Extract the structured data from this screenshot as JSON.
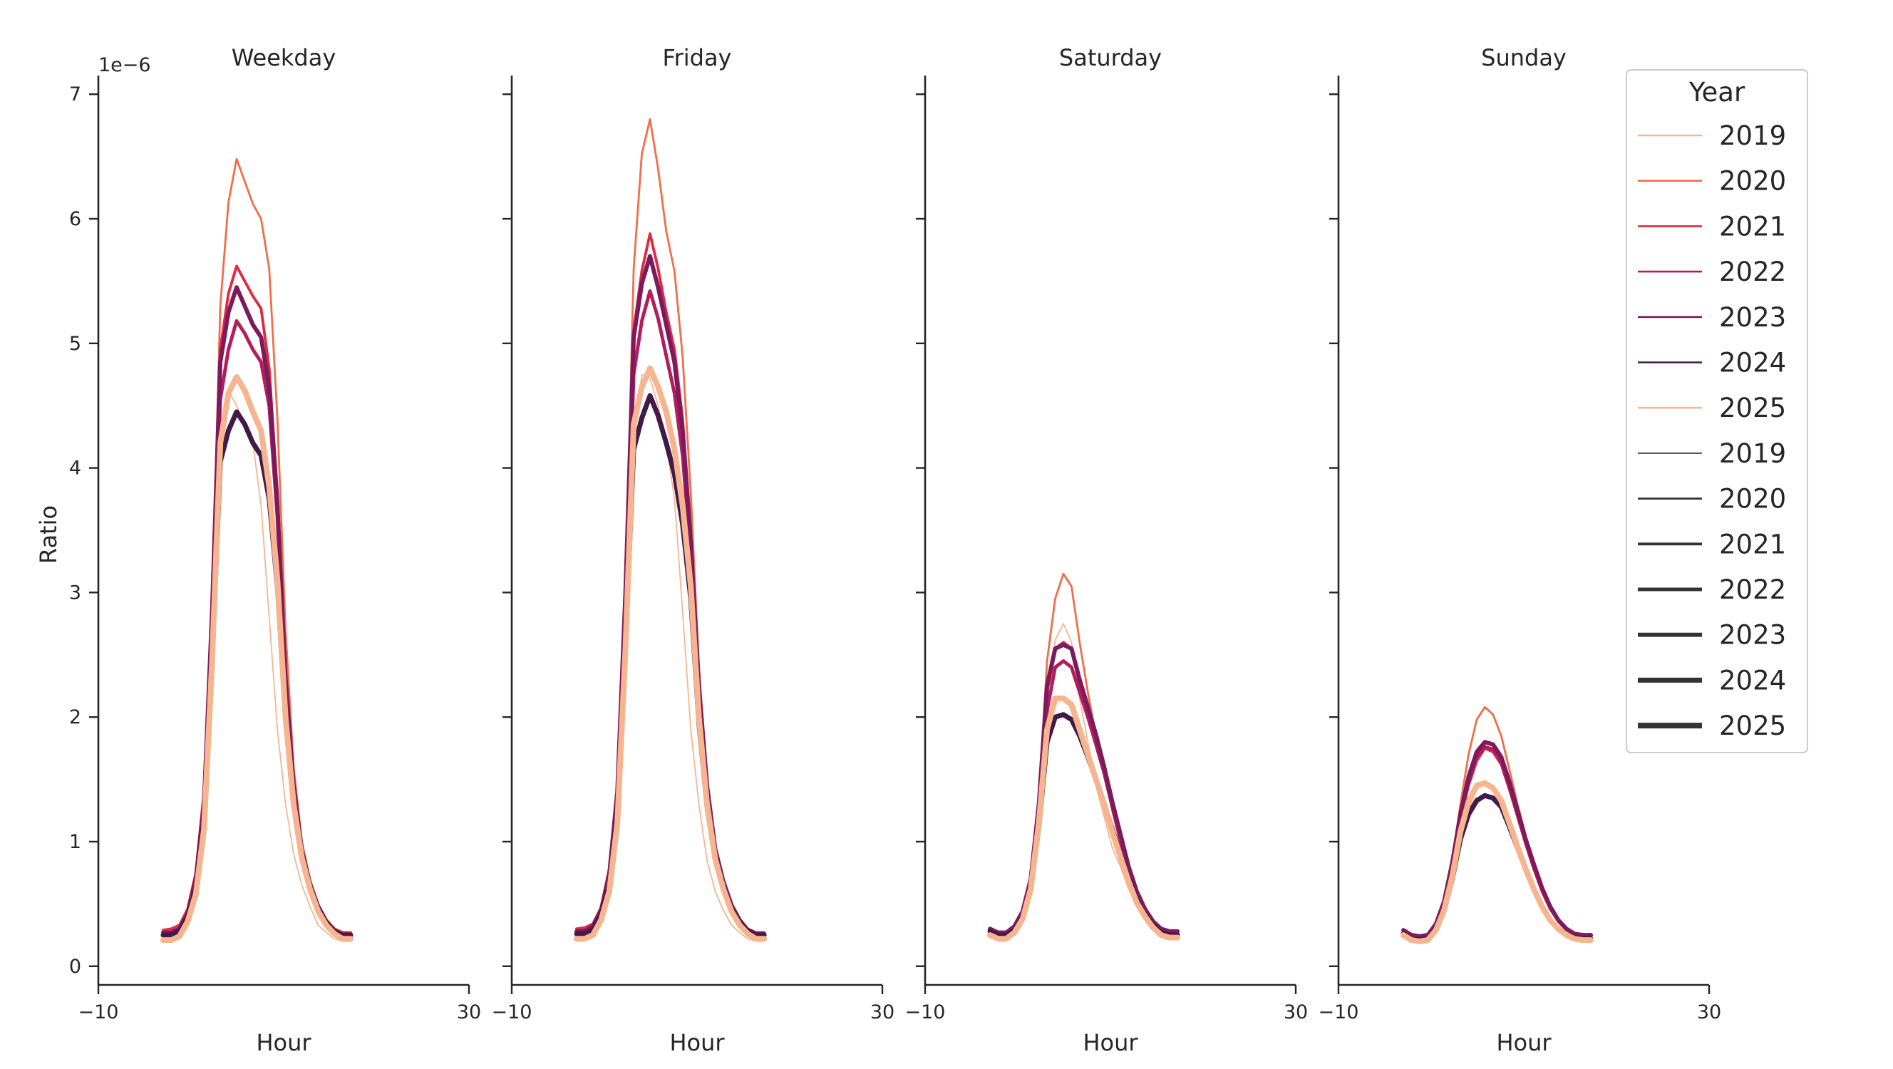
{
  "chart_data": {
    "type": "line",
    "scale_label": "1e−6",
    "ylabel": "Ratio",
    "xlabel": "Hour",
    "xlim": [
      -10,
      30
    ],
    "ylim": [
      -0.15,
      7.15
    ],
    "xticks": [
      "−10",
      "30"
    ],
    "yticks": [
      "0",
      "1",
      "2",
      "3",
      "4",
      "5",
      "6",
      "7"
    ],
    "hours": [
      0,
      1,
      2,
      3,
      4,
      5,
      6,
      7,
      8,
      9,
      10,
      11,
      12,
      13,
      14,
      15,
      16,
      17,
      18,
      19,
      20,
      21,
      22,
      23
    ],
    "legend": {
      "title": "Year",
      "color_entries": [
        {
          "label": "2019",
          "color": "#f6b48f"
        },
        {
          "label": "2020",
          "color": "#f06e49"
        },
        {
          "label": "2021",
          "color": "#dd2b41"
        },
        {
          "label": "2022",
          "color": "#b31d5c"
        },
        {
          "label": "2023",
          "color": "#7d1a5e"
        },
        {
          "label": "2024",
          "color": "#421a47"
        },
        {
          "label": "2025",
          "color": "#f6b48f"
        }
      ],
      "size_entries": [
        {
          "label": "2019",
          "width": 1
        },
        {
          "label": "2020",
          "width": 1.6
        },
        {
          "label": "2021",
          "width": 2.2
        },
        {
          "label": "2022",
          "width": 2.8
        },
        {
          "label": "2023",
          "width": 3.4
        },
        {
          "label": "2024",
          "width": 4.0
        },
        {
          "label": "2025",
          "width": 4.6
        }
      ]
    },
    "panels": [
      {
        "title": "Weekday",
        "series": [
          {
            "year": "2019",
            "color": "#f6b48f",
            "width": 1.0,
            "values": [
              0.22,
              0.23,
              0.27,
              0.38,
              0.62,
              1.12,
              2.45,
              4.0,
              4.62,
              4.5,
              4.35,
              4.2,
              3.7,
              2.8,
              1.9,
              1.3,
              0.9,
              0.65,
              0.48,
              0.33,
              0.27,
              0.22,
              0.2,
              0.2
            ]
          },
          {
            "year": "2020",
            "color": "#f06e49",
            "width": 1.6,
            "values": [
              0.26,
              0.26,
              0.3,
              0.43,
              0.7,
              1.3,
              2.9,
              5.3,
              6.13,
              6.48,
              6.3,
              6.12,
              6.0,
              5.6,
              4.4,
              2.7,
              1.6,
              1.0,
              0.7,
              0.5,
              0.38,
              0.3,
              0.26,
              0.26
            ]
          },
          {
            "year": "2021",
            "color": "#dd2b41",
            "width": 2.2,
            "values": [
              0.29,
              0.3,
              0.33,
              0.46,
              0.75,
              1.4,
              2.95,
              4.95,
              5.4,
              5.62,
              5.5,
              5.38,
              5.28,
              4.8,
              3.8,
              2.4,
              1.5,
              0.95,
              0.68,
              0.48,
              0.37,
              0.3,
              0.27,
              0.27
            ]
          },
          {
            "year": "2022",
            "color": "#b31d5c",
            "width": 2.8,
            "values": [
              0.27,
              0.27,
              0.3,
              0.42,
              0.68,
              1.25,
              2.7,
              4.55,
              4.95,
              5.18,
              5.08,
              4.95,
              4.85,
              4.5,
              3.6,
              2.3,
              1.45,
              0.92,
              0.66,
              0.47,
              0.35,
              0.28,
              0.25,
              0.25
            ]
          },
          {
            "year": "2023",
            "color": "#7d1a5e",
            "width": 3.4,
            "values": [
              0.27,
              0.27,
              0.3,
              0.42,
              0.7,
              1.3,
              2.85,
              4.85,
              5.25,
              5.45,
              5.3,
              5.15,
              5.05,
              4.65,
              3.7,
              2.3,
              1.45,
              0.93,
              0.66,
              0.48,
              0.36,
              0.28,
              0.25,
              0.25
            ]
          },
          {
            "year": "2024",
            "color": "#421a47",
            "width": 4.0,
            "values": [
              0.25,
              0.25,
              0.28,
              0.4,
              0.62,
              1.15,
              2.45,
              4.05,
              4.3,
              4.45,
              4.35,
              4.2,
              4.1,
              3.75,
              3.05,
              2.0,
              1.3,
              0.87,
              0.64,
              0.46,
              0.35,
              0.28,
              0.25,
              0.25
            ]
          },
          {
            "year": "2025",
            "color": "#f6b48f",
            "width": 4.6,
            "values": [
              0.21,
              0.21,
              0.24,
              0.36,
              0.58,
              1.1,
              2.45,
              4.2,
              4.6,
              4.73,
              4.62,
              4.45,
              4.3,
              3.85,
              3.1,
              2.0,
              1.3,
              0.87,
              0.62,
              0.44,
              0.33,
              0.26,
              0.22,
              0.22
            ]
          }
        ]
      },
      {
        "title": "Friday",
        "series": [
          {
            "year": "2019",
            "color": "#f6b48f",
            "width": 1.0,
            "values": [
              0.24,
              0.25,
              0.28,
              0.39,
              0.64,
              1.2,
              2.6,
              4.2,
              4.75,
              4.72,
              4.5,
              4.2,
              3.75,
              2.85,
              1.9,
              1.3,
              0.85,
              0.6,
              0.45,
              0.33,
              0.27,
              0.22,
              0.2,
              0.2
            ]
          },
          {
            "year": "2020",
            "color": "#f06e49",
            "width": 1.6,
            "values": [
              0.27,
              0.27,
              0.31,
              0.44,
              0.72,
              1.35,
              3.0,
              5.6,
              6.52,
              6.8,
              6.4,
              5.9,
              5.58,
              4.9,
              3.8,
              2.4,
              1.5,
              0.95,
              0.68,
              0.48,
              0.38,
              0.3,
              0.27,
              0.27
            ]
          },
          {
            "year": "2021",
            "color": "#dd2b41",
            "width": 2.2,
            "values": [
              0.3,
              0.31,
              0.34,
              0.47,
              0.78,
              1.45,
              3.05,
              5.1,
              5.58,
              5.88,
              5.6,
              5.25,
              4.95,
              4.4,
              3.5,
              2.3,
              1.45,
              0.93,
              0.66,
              0.48,
              0.37,
              0.3,
              0.27,
              0.27
            ]
          },
          {
            "year": "2022",
            "color": "#b31d5c",
            "width": 2.8,
            "values": [
              0.28,
              0.28,
              0.31,
              0.43,
              0.7,
              1.3,
              2.8,
              4.75,
              5.18,
              5.42,
              5.2,
              4.9,
              4.6,
              4.1,
              3.3,
              2.2,
              1.4,
              0.92,
              0.66,
              0.47,
              0.36,
              0.29,
              0.26,
              0.26
            ]
          },
          {
            "year": "2023",
            "color": "#7d1a5e",
            "width": 3.4,
            "values": [
              0.28,
              0.28,
              0.32,
              0.45,
              0.73,
              1.4,
              3.0,
              5.05,
              5.48,
              5.7,
              5.45,
              5.15,
              4.85,
              4.3,
              3.4,
              2.25,
              1.45,
              0.94,
              0.68,
              0.49,
              0.37,
              0.29,
              0.26,
              0.26
            ]
          },
          {
            "year": "2024",
            "color": "#421a47",
            "width": 4.0,
            "values": [
              0.26,
              0.26,
              0.29,
              0.41,
              0.65,
              1.2,
              2.6,
              4.15,
              4.4,
              4.58,
              4.42,
              4.2,
              3.95,
              3.55,
              2.95,
              1.95,
              1.28,
              0.86,
              0.63,
              0.46,
              0.35,
              0.28,
              0.25,
              0.25
            ]
          },
          {
            "year": "2025",
            "color": "#f6b48f",
            "width": 4.6,
            "values": [
              0.22,
              0.22,
              0.25,
              0.37,
              0.6,
              1.15,
              2.55,
              4.35,
              4.65,
              4.8,
              4.65,
              4.45,
              4.15,
              3.7,
              3.05,
              2.0,
              1.3,
              0.86,
              0.62,
              0.44,
              0.33,
              0.26,
              0.22,
              0.22
            ]
          }
        ]
      },
      {
        "title": "Saturday",
        "series": [
          {
            "year": "2019",
            "color": "#f6b48f",
            "width": 1.0,
            "values": [
              0.26,
              0.23,
              0.23,
              0.27,
              0.38,
              0.6,
              1.1,
              1.95,
              2.62,
              2.75,
              2.6,
              2.15,
              1.8,
              1.45,
              1.2,
              0.95,
              0.8,
              0.62,
              0.48,
              0.38,
              0.3,
              0.26,
              0.24,
              0.24
            ]
          },
          {
            "year": "2020",
            "color": "#f06e49",
            "width": 1.6,
            "values": [
              0.3,
              0.27,
              0.27,
              0.32,
              0.45,
              0.72,
              1.35,
              2.45,
              2.95,
              3.15,
              3.05,
              2.6,
              2.2,
              1.85,
              1.55,
              1.25,
              0.98,
              0.75,
              0.56,
              0.43,
              0.34,
              0.28,
              0.26,
              0.26
            ]
          },
          {
            "year": "2021",
            "color": "#dd2b41",
            "width": 2.2,
            "values": [
              0.3,
              0.27,
              0.27,
              0.32,
              0.44,
              0.7,
              1.3,
              2.2,
              2.55,
              2.6,
              2.55,
              2.3,
              2.05,
              1.8,
              1.55,
              1.28,
              1.02,
              0.78,
              0.58,
              0.45,
              0.35,
              0.29,
              0.27,
              0.27
            ]
          },
          {
            "year": "2022",
            "color": "#b31d5c",
            "width": 2.8,
            "values": [
              0.28,
              0.25,
              0.25,
              0.3,
              0.42,
              0.66,
              1.22,
              2.05,
              2.4,
              2.45,
              2.4,
              2.2,
              2.0,
              1.78,
              1.55,
              1.28,
              1.02,
              0.78,
              0.58,
              0.45,
              0.35,
              0.29,
              0.27,
              0.27
            ]
          },
          {
            "year": "2023",
            "color": "#7d1a5e",
            "width": 3.4,
            "values": [
              0.3,
              0.27,
              0.27,
              0.32,
              0.44,
              0.7,
              1.3,
              2.25,
              2.55,
              2.58,
              2.55,
              2.3,
              2.08,
              1.86,
              1.6,
              1.32,
              1.06,
              0.8,
              0.6,
              0.46,
              0.36,
              0.3,
              0.28,
              0.28
            ]
          },
          {
            "year": "2024",
            "color": "#421a47",
            "width": 4.0,
            "values": [
              0.28,
              0.25,
              0.25,
              0.29,
              0.4,
              0.62,
              1.12,
              1.8,
              2.0,
              2.02,
              1.98,
              1.85,
              1.68,
              1.5,
              1.3,
              1.1,
              0.9,
              0.7,
              0.53,
              0.41,
              0.33,
              0.27,
              0.25,
              0.25
            ]
          },
          {
            "year": "2025",
            "color": "#f6b48f",
            "width": 4.6,
            "values": [
              0.25,
              0.22,
              0.22,
              0.27,
              0.38,
              0.62,
              1.15,
              1.9,
              2.15,
              2.15,
              2.1,
              1.9,
              1.7,
              1.5,
              1.3,
              1.08,
              0.88,
              0.68,
              0.51,
              0.4,
              0.31,
              0.25,
              0.23,
              0.23
            ]
          }
        ]
      },
      {
        "title": "Sunday",
        "series": [
          {
            "year": "2019",
            "color": "#f6b48f",
            "width": 1.0,
            "values": [
              0.26,
              0.22,
              0.21,
              0.22,
              0.3,
              0.45,
              0.7,
              1.0,
              1.25,
              1.42,
              1.47,
              1.45,
              1.35,
              1.15,
              0.95,
              0.78,
              0.62,
              0.48,
              0.38,
              0.3,
              0.25,
              0.23,
              0.22,
              0.22
            ]
          },
          {
            "year": "2020",
            "color": "#f06e49",
            "width": 1.6,
            "values": [
              0.29,
              0.25,
              0.24,
              0.25,
              0.34,
              0.52,
              0.85,
              1.3,
              1.7,
              1.98,
              2.08,
              2.02,
              1.85,
              1.58,
              1.3,
              1.05,
              0.82,
              0.62,
              0.47,
              0.36,
              0.29,
              0.26,
              0.25,
              0.25
            ]
          },
          {
            "year": "2021",
            "color": "#dd2b41",
            "width": 2.2,
            "values": [
              0.29,
              0.25,
              0.24,
              0.25,
              0.34,
              0.52,
              0.82,
              1.18,
              1.45,
              1.65,
              1.75,
              1.72,
              1.62,
              1.42,
              1.2,
              0.98,
              0.78,
              0.6,
              0.46,
              0.36,
              0.29,
              0.26,
              0.25,
              0.25
            ]
          },
          {
            "year": "2022",
            "color": "#b31d5c",
            "width": 2.8,
            "values": [
              0.29,
              0.25,
              0.24,
              0.25,
              0.34,
              0.52,
              0.82,
              1.2,
              1.48,
              1.68,
              1.76,
              1.74,
              1.64,
              1.44,
              1.22,
              1.0,
              0.8,
              0.62,
              0.48,
              0.37,
              0.3,
              0.26,
              0.25,
              0.25
            ]
          },
          {
            "year": "2023",
            "color": "#7d1a5e",
            "width": 3.4,
            "values": [
              0.29,
              0.25,
              0.24,
              0.25,
              0.34,
              0.52,
              0.83,
              1.22,
              1.52,
              1.72,
              1.8,
              1.78,
              1.68,
              1.48,
              1.25,
              1.02,
              0.82,
              0.63,
              0.48,
              0.37,
              0.3,
              0.26,
              0.25,
              0.25
            ]
          },
          {
            "year": "2024",
            "color": "#421a47",
            "width": 4.0,
            "values": [
              0.26,
              0.22,
              0.21,
              0.22,
              0.3,
              0.45,
              0.7,
              1.02,
              1.22,
              1.33,
              1.37,
              1.35,
              1.28,
              1.12,
              0.95,
              0.78,
              0.62,
              0.48,
              0.37,
              0.3,
              0.25,
              0.23,
              0.22,
              0.22
            ]
          },
          {
            "year": "2025",
            "color": "#f6b48f",
            "width": 4.6,
            "values": [
              0.25,
              0.21,
              0.2,
              0.21,
              0.29,
              0.45,
              0.72,
              1.08,
              1.32,
              1.45,
              1.47,
              1.43,
              1.33,
              1.15,
              0.96,
              0.78,
              0.62,
              0.48,
              0.37,
              0.3,
              0.25,
              0.22,
              0.21,
              0.21
            ]
          }
        ]
      }
    ]
  }
}
